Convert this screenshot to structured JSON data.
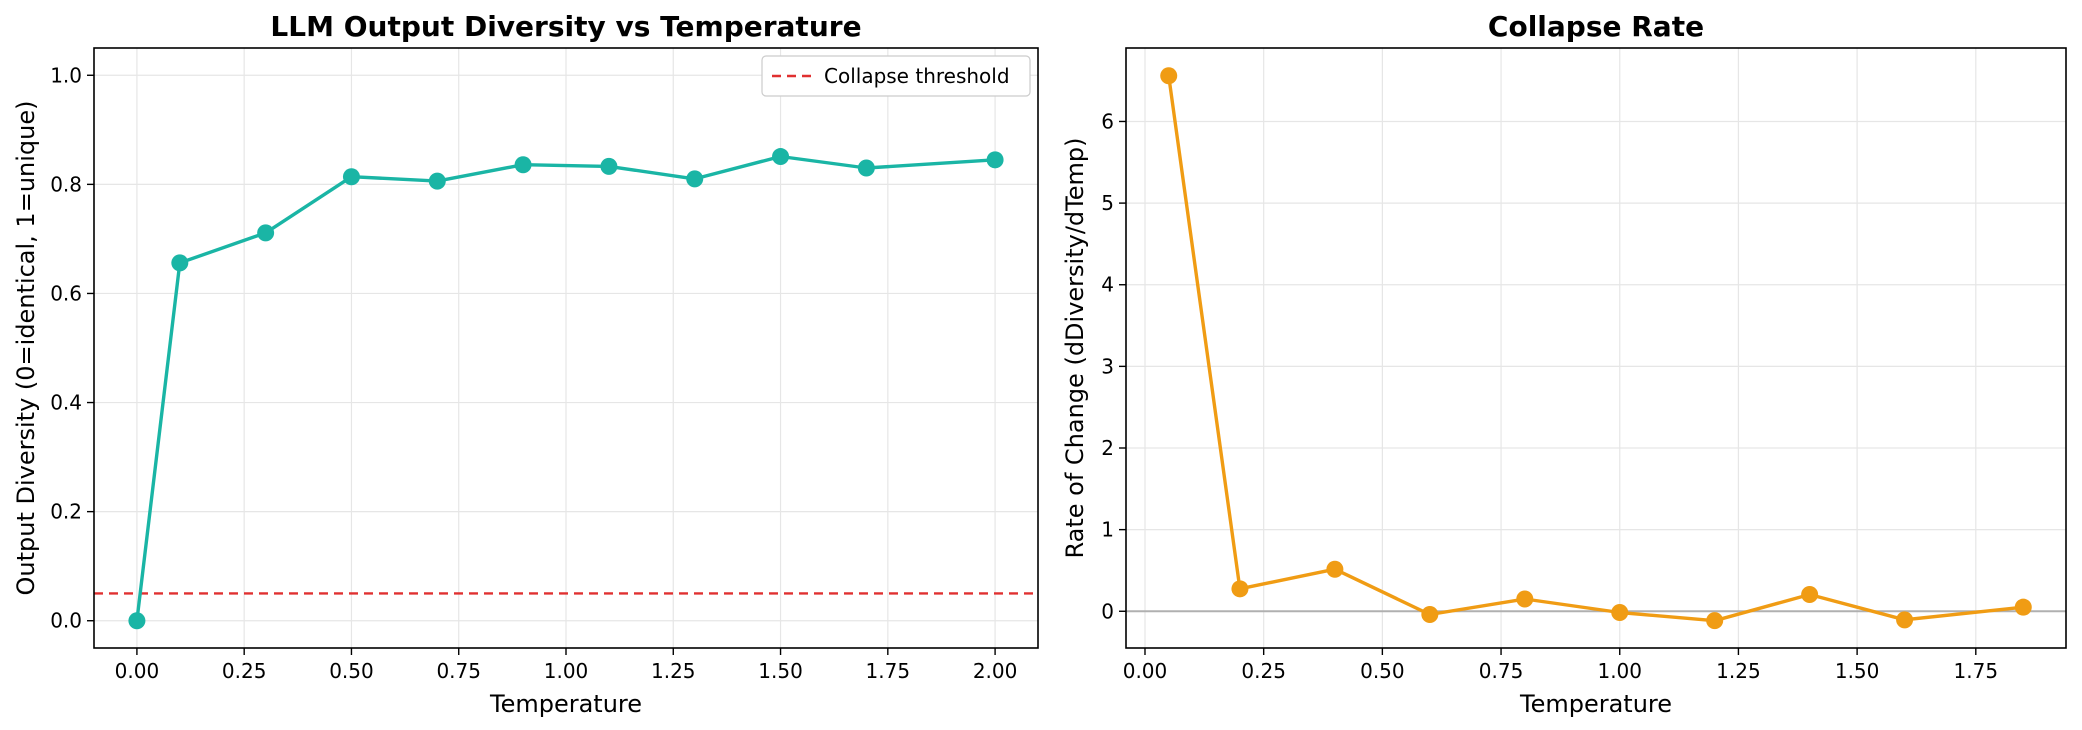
{
  "chart_data": [
    {
      "type": "line",
      "title": "LLM Output Diversity vs Temperature",
      "xlabel": "Temperature",
      "ylabel": "Output Diversity (0=identical, 1=unique)",
      "xlim": [
        -0.1,
        2.1
      ],
      "ylim": [
        -0.05,
        1.05
      ],
      "xticks": [
        0.0,
        0.25,
        0.5,
        0.75,
        1.0,
        1.25,
        1.5,
        1.75,
        2.0
      ],
      "xtick_labels": [
        "0.00",
        "0.25",
        "0.50",
        "0.75",
        "1.00",
        "1.25",
        "1.50",
        "1.75",
        "2.00"
      ],
      "yticks": [
        0.0,
        0.2,
        0.4,
        0.6,
        0.8,
        1.0
      ],
      "ytick_labels": [
        "0.0",
        "0.2",
        "0.4",
        "0.6",
        "0.8",
        "1.0"
      ],
      "grid": true,
      "legend_position": "top-right",
      "series": [
        {
          "name": "",
          "color": "#1ab5a5",
          "x": [
            0.0,
            0.1,
            0.3,
            0.5,
            0.7,
            0.9,
            1.1,
            1.3,
            1.5,
            1.7,
            2.0
          ],
          "values": [
            0.0,
            0.656,
            0.711,
            0.814,
            0.806,
            0.836,
            0.833,
            0.81,
            0.851,
            0.83,
            0.845
          ]
        }
      ],
      "reference_lines": [
        {
          "name": "Collapse threshold",
          "y": 0.05,
          "color": "#e03030",
          "style": "dashed"
        }
      ]
    },
    {
      "type": "line",
      "title": "Collapse Rate",
      "xlabel": "Temperature",
      "ylabel": "Rate of Change (dDiversity/dTemp)",
      "xlim": [
        -0.04,
        1.94
      ],
      "ylim": [
        -0.45,
        6.9
      ],
      "xticks": [
        0.0,
        0.25,
        0.5,
        0.75,
        1.0,
        1.25,
        1.5,
        1.75
      ],
      "xtick_labels": [
        "0.00",
        "0.25",
        "0.50",
        "0.75",
        "1.00",
        "1.25",
        "1.50",
        "1.75"
      ],
      "yticks": [
        0,
        1,
        2,
        3,
        4,
        5,
        6
      ],
      "ytick_labels": [
        "0",
        "1",
        "2",
        "3",
        "4",
        "5",
        "6"
      ],
      "grid": true,
      "series": [
        {
          "name": "",
          "color": "#f09c14",
          "x": [
            0.05,
            0.2,
            0.4,
            0.6,
            0.8,
            1.0,
            1.2,
            1.4,
            1.6,
            1.85
          ],
          "values": [
            6.56,
            0.275,
            0.515,
            -0.04,
            0.15,
            -0.015,
            -0.115,
            0.205,
            -0.105,
            0.05
          ]
        }
      ],
      "reference_lines": [
        {
          "name": "",
          "y": 0,
          "color": "#b0b0b0",
          "style": "solid"
        }
      ]
    }
  ]
}
